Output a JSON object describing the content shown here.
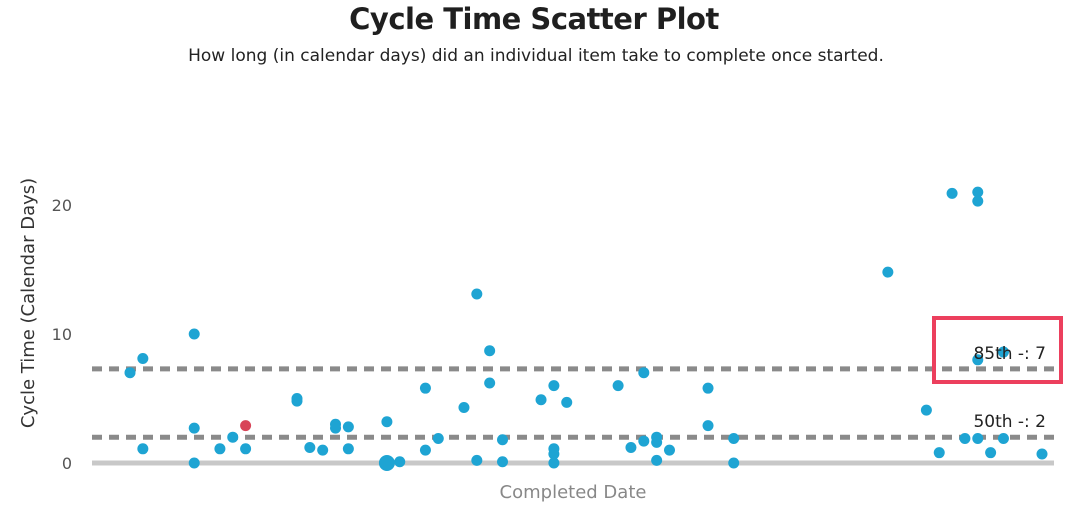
{
  "chart_data": {
    "type": "scatter",
    "title": "Cycle Time Scatter Plot",
    "subtitle": "How long (in calendar days) did an individual item take to complete once started.",
    "xlabel": "Completed Date",
    "ylabel": "Cycle Time (Calendar Days)",
    "ylim": [
      0,
      25
    ],
    "yticks": [
      0,
      10,
      20
    ],
    "grid": false,
    "colors": {
      "point": "#1ea4d3",
      "highlight_point": "#d84458",
      "percentile_line": "#8a8a8a",
      "baseline": "#c8c8c8",
      "highlight_box": "#ec3f5d"
    },
    "percentiles": [
      {
        "label": "85th -: 7",
        "value": 7.3
      },
      {
        "label": "50th -: 2",
        "value": 2
      }
    ],
    "points": [
      {
        "x": 2,
        "y": 7
      },
      {
        "x": 3,
        "y": 8.1
      },
      {
        "x": 3,
        "y": 1.1
      },
      {
        "x": 7,
        "y": 10
      },
      {
        "x": 7,
        "y": 2.7
      },
      {
        "x": 7,
        "y": 0
      },
      {
        "x": 9,
        "y": 1.1
      },
      {
        "x": 10,
        "y": 2
      },
      {
        "x": 11,
        "y": 2.9,
        "highlight": true
      },
      {
        "x": 11,
        "y": 1.1
      },
      {
        "x": 15,
        "y": 5
      },
      {
        "x": 15,
        "y": 4.8
      },
      {
        "x": 16,
        "y": 1.2
      },
      {
        "x": 17,
        "y": 1
      },
      {
        "x": 18,
        "y": 3
      },
      {
        "x": 18,
        "y": 2.7
      },
      {
        "x": 19,
        "y": 2.8
      },
      {
        "x": 19,
        "y": 1.1
      },
      {
        "x": 22,
        "y": 3.2
      },
      {
        "x": 22,
        "y": 0
      },
      {
        "x": 22,
        "y": 0,
        "size": "large"
      },
      {
        "x": 23,
        "y": 0.1
      },
      {
        "x": 25,
        "y": 5.8
      },
      {
        "x": 25,
        "y": 1
      },
      {
        "x": 26,
        "y": 1.9
      },
      {
        "x": 28,
        "y": 4.3
      },
      {
        "x": 29,
        "y": 13.1
      },
      {
        "x": 29,
        "y": 0.2
      },
      {
        "x": 30,
        "y": 8.7
      },
      {
        "x": 30,
        "y": 6.2
      },
      {
        "x": 31,
        "y": 1.8
      },
      {
        "x": 31,
        "y": 0.1
      },
      {
        "x": 34,
        "y": 4.9
      },
      {
        "x": 35,
        "y": 6
      },
      {
        "x": 35,
        "y": 1.1
      },
      {
        "x": 35,
        "y": 0.7
      },
      {
        "x": 35,
        "y": 0
      },
      {
        "x": 36,
        "y": 4.7
      },
      {
        "x": 40,
        "y": 6
      },
      {
        "x": 41,
        "y": 1.2
      },
      {
        "x": 42,
        "y": 7
      },
      {
        "x": 42,
        "y": 1.7
      },
      {
        "x": 43,
        "y": 2
      },
      {
        "x": 43,
        "y": 1.6
      },
      {
        "x": 43,
        "y": 0.2
      },
      {
        "x": 44,
        "y": 1
      },
      {
        "x": 47,
        "y": 5.8
      },
      {
        "x": 47,
        "y": 2.9
      },
      {
        "x": 49,
        "y": 1.9
      },
      {
        "x": 49,
        "y": 0
      },
      {
        "x": 61,
        "y": 14.8
      },
      {
        "x": 64,
        "y": 4.1
      },
      {
        "x": 65,
        "y": 0.8
      },
      {
        "x": 66,
        "y": 20.9
      },
      {
        "x": 67,
        "y": 1.9
      },
      {
        "x": 68,
        "y": 21
      },
      {
        "x": 68,
        "y": 20.3
      },
      {
        "x": 68,
        "y": 8
      },
      {
        "x": 68,
        "y": 1.9
      },
      {
        "x": 69,
        "y": 0.8
      },
      {
        "x": 70,
        "y": 8.6
      },
      {
        "x": 70,
        "y": 1.9
      },
      {
        "x": 73,
        "y": 0.7
      }
    ]
  }
}
